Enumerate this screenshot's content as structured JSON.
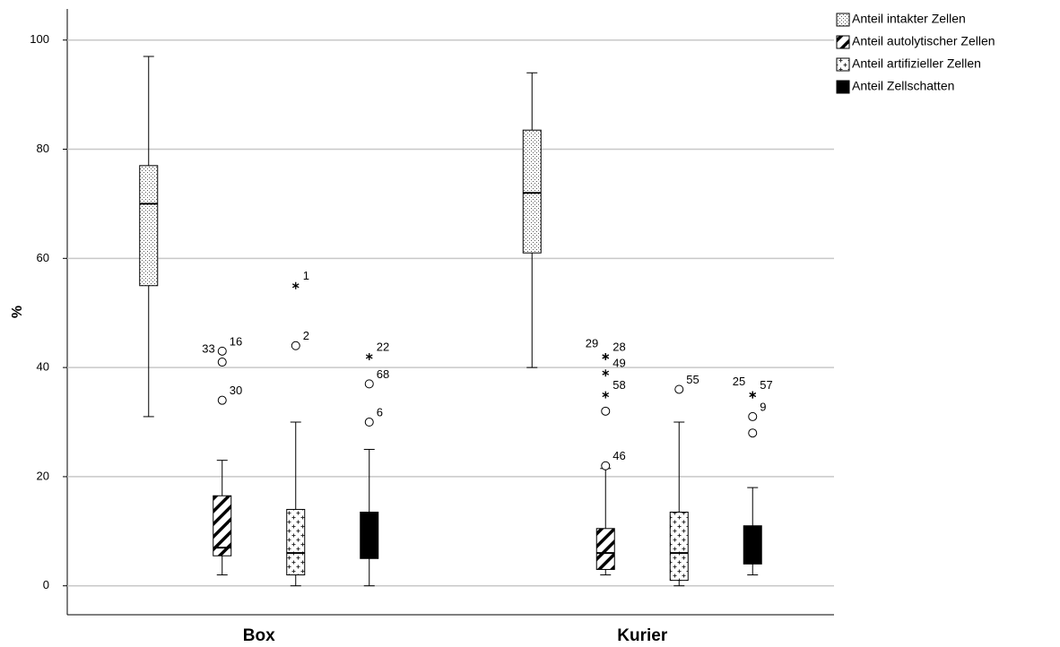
{
  "chart_data": {
    "type": "boxplot",
    "y_label": "%",
    "categories": [
      "Box",
      "Kurier"
    ],
    "ylim": [
      -5.3,
      105.7
    ],
    "yticks": [
      0,
      20,
      40,
      60,
      80,
      100
    ],
    "grid": true,
    "legend": "outside-top-right",
    "series": [
      {
        "name": "Anteil intakter Zellen",
        "pattern": "dots",
        "values": [
          {
            "min": 31,
            "q1": 55,
            "median": 70,
            "q3": 77,
            "max": 97,
            "outliers": []
          },
          {
            "min": 40,
            "q1": 61,
            "median": 72,
            "q3": 83.5,
            "max": 94,
            "outliers": []
          }
        ]
      },
      {
        "name": "Anteil autolytischer Zellen",
        "pattern": "diagonal",
        "values": [
          {
            "min": 2,
            "q1": 5.5,
            "median": 7,
            "q3": 16.5,
            "max": 23,
            "outliers": [
              {
                "value": 43,
                "label": "16",
                "kind": "circle"
              },
              {
                "value": 41,
                "label": "33",
                "kind": "circle"
              },
              {
                "value": 34,
                "label": "30",
                "kind": "circle"
              }
            ]
          },
          {
            "min": 2,
            "q1": 3,
            "median": 6,
            "q3": 10.5,
            "max": 21.5,
            "outliers": [
              {
                "value": 42,
                "label": "28",
                "kind": "star"
              },
              {
                "value": 42,
                "label": "29",
                "kind": "star"
              },
              {
                "value": 39,
                "label": "49",
                "kind": "star"
              },
              {
                "value": 35,
                "label": "58",
                "kind": "star"
              },
              {
                "value": 32,
                "label": null,
                "kind": "circle"
              },
              {
                "value": 22,
                "label": "46",
                "kind": "circle"
              }
            ]
          }
        ]
      },
      {
        "name": "Anteil artifizieller Zellen",
        "pattern": "cross",
        "values": [
          {
            "min": 0,
            "q1": 2,
            "median": 6,
            "q3": 14,
            "max": 30,
            "outliers": [
              {
                "value": 55,
                "label": "1",
                "kind": "star"
              },
              {
                "value": 44,
                "label": "2",
                "kind": "circle"
              }
            ]
          },
          {
            "min": 0,
            "q1": 1,
            "median": 6,
            "q3": 13.5,
            "max": 30,
            "outliers": [
              {
                "value": 36,
                "label": "55",
                "kind": "circle"
              }
            ]
          }
        ]
      },
      {
        "name": "Anteil Zellschatten",
        "pattern": "solid",
        "values": [
          {
            "min": 0,
            "q1": 5,
            "median": 9,
            "q3": 13.5,
            "max": 25,
            "outliers": [
              {
                "value": 42,
                "label": "22",
                "kind": "star"
              },
              {
                "value": 37,
                "label": "68",
                "kind": "circle"
              },
              {
                "value": 30,
                "label": "6",
                "kind": "circle"
              }
            ]
          },
          {
            "min": 2,
            "q1": 4,
            "median": 7,
            "q3": 11,
            "max": 18,
            "outliers": [
              {
                "value": 35,
                "label": "57",
                "kind": "star"
              },
              {
                "value": 35,
                "label": "25",
                "kind": "star"
              },
              {
                "value": 31,
                "label": "9",
                "kind": "circle"
              },
              {
                "value": 28,
                "label": null,
                "kind": "circle"
              }
            ]
          }
        ]
      }
    ]
  }
}
